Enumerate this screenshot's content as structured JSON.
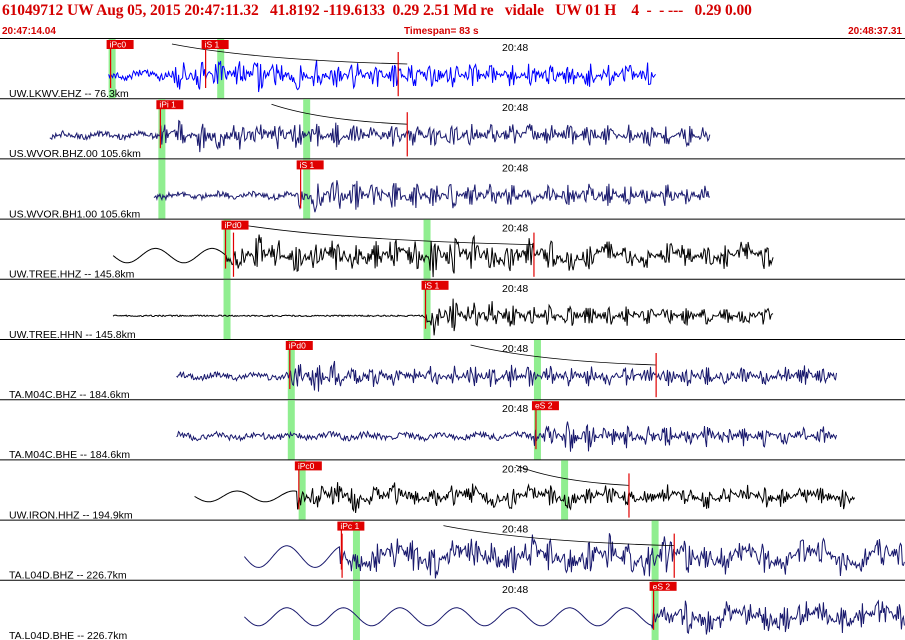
{
  "header": {
    "title": "61049712 UW Aug 05, 2015 20:47:11.32   41.8192 -119.6133  0.29 2.51 Md re   vidale   UW 01 H    4  -  - ---   0.29 0.00",
    "start_time": "20:47:14.04",
    "timespan": "Timespan=  83 s",
    "end_time": "20:48:37.31"
  },
  "colors": {
    "header_text": "#d40000",
    "pick_box": "#e00000",
    "highlight": "#90ee90",
    "trace_blue": "#0000ff",
    "trace_navy": "#1a1a6e",
    "trace_black": "#000000",
    "theoretical_curve": "#000000",
    "pick_line": "#e00000"
  },
  "traces": [
    {
      "label": "UW.LKWV.EHZ -- 76.3km",
      "time_label": "20:48",
      "color": "blue",
      "start": 0.12,
      "end": 0.725,
      "amp": 8,
      "onset": 0.185,
      "burst": 0.25,
      "burst_amp": 22,
      "pre": "noise",
      "picks": [
        {
          "label": "iPc0",
          "pos": 0.12
        },
        {
          "label": "iS 1",
          "pos": 0.225
        }
      ],
      "highlights": [
        0.12,
        0.24
      ],
      "pick_lines": [
        0.44
      ],
      "curve": [
        0.19,
        0.45
      ]
    },
    {
      "label": "US.WVOR.BHZ.00 105.6km",
      "time_label": "20:48",
      "color": "navy",
      "start": 0.055,
      "end": 0.785,
      "amp": 6,
      "onset": 0.175,
      "burst": 0.21,
      "burst_amp": 22,
      "pre": "noise",
      "picks": [
        {
          "label": "iPi 1",
          "pos": 0.175
        }
      ],
      "highlights": [
        0.175,
        0.335
      ],
      "pick_lines": [
        0.45
      ],
      "curve": [
        0.3,
        0.45
      ]
    },
    {
      "label": "US.WVOR.BH1.00 105.6km",
      "time_label": "20:48",
      "color": "navy",
      "start": 0.17,
      "end": 0.785,
      "amp": 6,
      "onset": 0.33,
      "burst": 0.345,
      "burst_amp": 22,
      "pre": "noise",
      "picks": [
        {
          "label": "iS 1",
          "pos": 0.33
        }
      ],
      "highlights": [
        0.175,
        0.335
      ],
      "pick_lines": [],
      "curve": null
    },
    {
      "label": "UW.TREE.HHZ -- 145.8km",
      "time_label": "20:48",
      "color": "black",
      "start": 0.125,
      "end": 0.855,
      "amp": 8,
      "onset": 0.25,
      "burst": 0.47,
      "burst_amp": 24,
      "pre": "swell",
      "picks": [
        {
          "label": "iPd0",
          "pos": 0.247
        }
      ],
      "highlights": [
        0.247,
        0.468
      ],
      "pick_lines": [
        0.258,
        0.59
      ],
      "curve": [
        0.265,
        0.59
      ]
    },
    {
      "label": "UW.TREE.HHN -- 145.8km",
      "time_label": "20:48",
      "color": "black",
      "start": 0.125,
      "end": 0.855,
      "amp": 3,
      "onset": 0.468,
      "burst": 0.475,
      "burst_amp": 22,
      "pre": "flat",
      "picks": [
        {
          "label": "iS 1",
          "pos": 0.468
        }
      ],
      "highlights": [
        0.247,
        0.468
      ],
      "pick_lines": [],
      "curve": null
    },
    {
      "label": "TA.M04C.BHZ -- 184.6km",
      "time_label": "20:48",
      "color": "navy",
      "start": 0.195,
      "end": 0.925,
      "amp": 6,
      "onset": 0.318,
      "burst": 0.33,
      "burst_amp": 20,
      "pre": "noise",
      "picks": [
        {
          "label": "iPd0",
          "pos": 0.318
        }
      ],
      "highlights": [
        0.318,
        0.59
      ],
      "pick_lines": [
        0.725
      ],
      "curve": [
        0.52,
        0.725
      ]
    },
    {
      "label": "TA.M04C.BHE -- 184.6km",
      "time_label": "20:48",
      "color": "navy",
      "start": 0.195,
      "end": 0.925,
      "amp": 6,
      "onset": 0.59,
      "burst": 0.62,
      "burst_amp": 18,
      "pre": "noise",
      "picks": [
        {
          "label": "eS 2",
          "pos": 0.59
        }
      ],
      "highlights": [
        0.318,
        0.59
      ],
      "pick_lines": [],
      "curve": null
    },
    {
      "label": "UW.IRON.HHZ -- 194.9km",
      "time_label": "20:49",
      "color": "black",
      "start": 0.215,
      "end": 0.945,
      "amp": 6,
      "onset": 0.328,
      "burst": 0.35,
      "burst_amp": 18,
      "pre": "swell",
      "picks": [
        {
          "label": "iPc0",
          "pos": 0.328
        }
      ],
      "highlights": [
        0.33,
        0.62
      ],
      "pick_lines": [
        0.695
      ],
      "curve": [
        0.57,
        0.695
      ]
    },
    {
      "label": "TA.L04D.BHZ -- 226.7km",
      "time_label": "20:48",
      "color": "navy",
      "start": 0.27,
      "end": 1.0,
      "amp": 12,
      "onset": 0.375,
      "burst": 0.72,
      "burst_amp": 22,
      "pre": "swell",
      "picks": [
        {
          "label": "iPc 1",
          "pos": 0.375
        }
      ],
      "highlights": [
        0.39,
        0.72
      ],
      "pick_lines": [
        0.378,
        0.745
      ],
      "curve": [
        0.49,
        0.745
      ]
    },
    {
      "label": "TA.L04D.BHE -- 226.7km",
      "time_label": "20:48",
      "color": "navy",
      "start": 0.27,
      "end": 1.0,
      "amp": 10,
      "onset": 0.72,
      "burst": 0.735,
      "burst_amp": 22,
      "pre": "swell",
      "picks": [
        {
          "label": "eS 2",
          "pos": 0.72
        }
      ],
      "highlights": [
        0.39,
        0.72
      ],
      "pick_lines": [],
      "curve": null
    }
  ]
}
